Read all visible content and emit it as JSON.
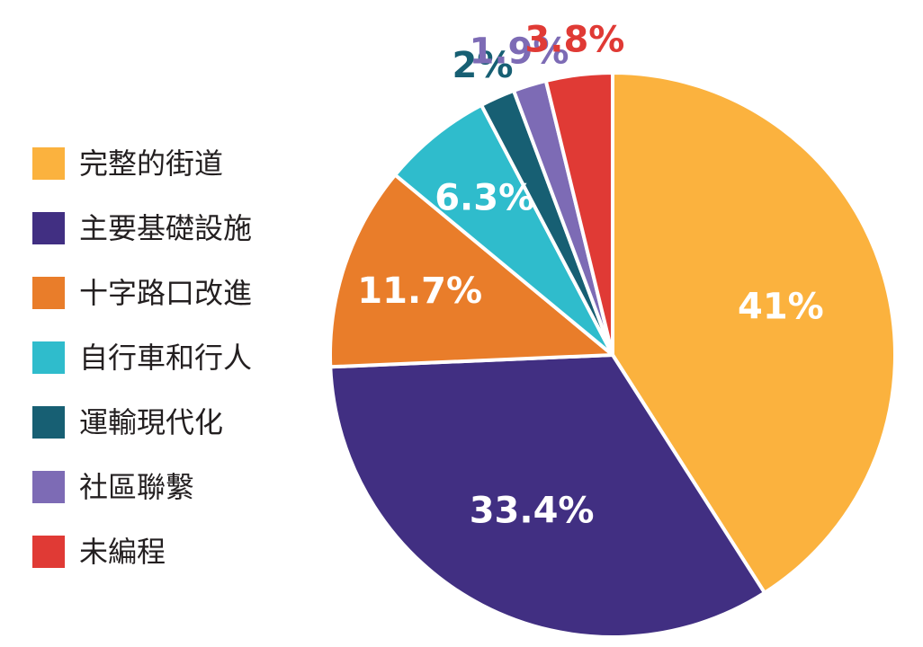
{
  "chart_data": {
    "type": "pie",
    "title": "",
    "slices": [
      {
        "name": "完整的街道",
        "value": 41.0,
        "label": "41%",
        "color": "#fbb23e"
      },
      {
        "name": "主要基礎設施",
        "value": 33.4,
        "label": "33.4%",
        "color": "#412f82"
      },
      {
        "name": "十字路口改進",
        "value": 11.7,
        "label": "11.7%",
        "color": "#e97d2a"
      },
      {
        "name": "自行車和行人",
        "value": 6.3,
        "label": "6.3%",
        "color": "#2fbccc"
      },
      {
        "name": "運輸現代化",
        "value": 2.0,
        "label": "2%",
        "color": "#175f73"
      },
      {
        "name": "社區聯繫",
        "value": 1.9,
        "label": "1.9%",
        "color": "#7d6bb5"
      },
      {
        "name": "未編程",
        "value": 3.8,
        "label": "3.8%",
        "color": "#e03a35"
      }
    ],
    "legend_position": "left",
    "slice_order": "counterclockwise from top"
  }
}
